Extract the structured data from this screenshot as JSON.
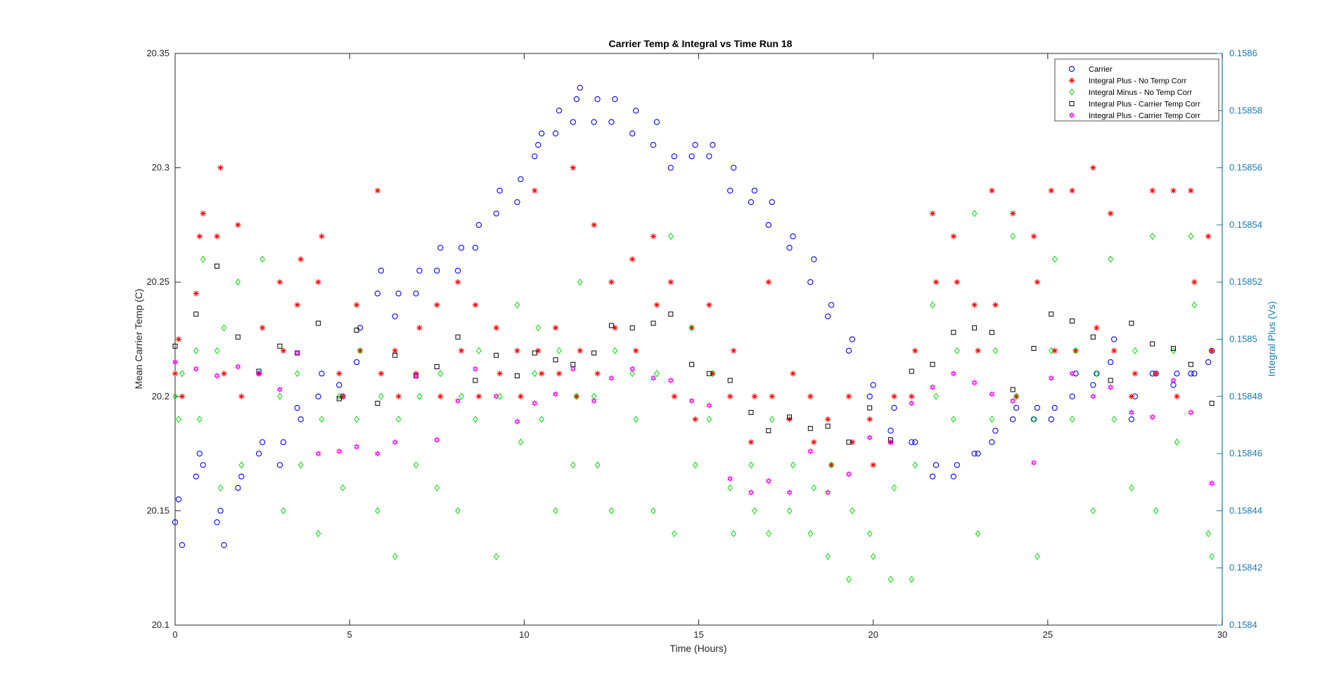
{
  "chart_data": {
    "type": "scatter",
    "title": "Carrier Temp & Integral vs Time Run 18",
    "xlabel": "Time (Hours)",
    "ylabel": "Mean Carrier Temp (C)",
    "ylabel_right": "Integral Plus (Vs)",
    "xlim": [
      0,
      30
    ],
    "ylim": [
      20.1,
      20.35
    ],
    "ylim_right": [
      0.1584,
      0.1586
    ],
    "x_ticks": [
      "0",
      "5",
      "10",
      "15",
      "20",
      "25",
      "30"
    ],
    "y_ticks": [
      "20.1",
      "20.15",
      "20.2",
      "20.25",
      "20.3",
      "20.35"
    ],
    "y_ticks_right": [
      "0.1584",
      "0.15842",
      "0.15844",
      "0.15846",
      "0.15848",
      "0.1585",
      "0.15852",
      "0.15854",
      "0.15856",
      "0.15858",
      "0.1586"
    ],
    "grid": false,
    "legend_position": "top-right",
    "colors": {
      "carrier": "#0000ff",
      "plus_no_corr": "#ff0000",
      "minus_no_corr": "#00dd00",
      "plus_temp_corr": "#000000",
      "plus_temp_corr_2": "#ff00ff",
      "right_axis": "#1a7ab5"
    },
    "series": [
      {
        "name": "Carrier",
        "marker": "circle",
        "axis": "left",
        "x": [
          0,
          0.1,
          0.2,
          0.6,
          0.7,
          0.8,
          1.2,
          1.3,
          1.4,
          1.8,
          1.9,
          2.4,
          2.5,
          3.0,
          3.1,
          3.5,
          3.6,
          4.1,
          4.2,
          4.7,
          4.8,
          5.2,
          5.3,
          5.8,
          5.9,
          6.3,
          6.4,
          6.9,
          7.0,
          7.5,
          7.6,
          8.1,
          8.2,
          8.6,
          8.7,
          9.2,
          9.3,
          9.8,
          9.9,
          10.3,
          10.4,
          10.5,
          10.9,
          11.0,
          11.4,
          11.5,
          11.6,
          12.0,
          12.1,
          12.5,
          12.6,
          13.1,
          13.2,
          13.7,
          13.8,
          14.2,
          14.3,
          14.8,
          14.9,
          15.3,
          15.4,
          15.9,
          16.0,
          16.5,
          16.6,
          17.0,
          17.1,
          17.6,
          17.7,
          18.2,
          18.3,
          18.7,
          18.8,
          19.3,
          19.4,
          19.9,
          20.0,
          20.5,
          20.6,
          21.1,
          21.2,
          21.7,
          21.8,
          22.3,
          22.4,
          22.9,
          23.0,
          23.4,
          23.5,
          24.0,
          24.1,
          24.6,
          24.7,
          25.1,
          25.2,
          25.7,
          25.8,
          26.3,
          26.4,
          26.8,
          26.9,
          27.4,
          27.5,
          28.0,
          28.1,
          28.6,
          28.7,
          29.1,
          29.2,
          29.6,
          29.7
        ],
        "y": [
          20.145,
          20.155,
          20.135,
          20.165,
          20.175,
          20.17,
          20.145,
          20.15,
          20.135,
          20.16,
          20.165,
          20.175,
          20.18,
          20.17,
          20.18,
          20.195,
          20.19,
          20.2,
          20.21,
          20.205,
          20.2,
          20.215,
          20.23,
          20.245,
          20.255,
          20.235,
          20.245,
          20.245,
          20.255,
          20.255,
          20.265,
          20.255,
          20.265,
          20.265,
          20.275,
          20.28,
          20.29,
          20.285,
          20.295,
          20.305,
          20.31,
          20.315,
          20.315,
          20.325,
          20.32,
          20.33,
          20.335,
          20.32,
          20.33,
          20.32,
          20.33,
          20.315,
          20.325,
          20.31,
          20.32,
          20.3,
          20.305,
          20.305,
          20.31,
          20.305,
          20.31,
          20.29,
          20.3,
          20.285,
          20.29,
          20.275,
          20.285,
          20.265,
          20.27,
          20.25,
          20.26,
          20.235,
          20.24,
          20.22,
          20.225,
          20.2,
          20.205,
          20.185,
          20.195,
          20.18,
          20.18,
          20.165,
          20.17,
          20.165,
          20.17,
          20.175,
          20.175,
          20.18,
          20.185,
          20.19,
          20.195,
          20.19,
          20.195,
          20.19,
          20.195,
          20.2,
          20.21,
          20.205,
          20.21,
          20.215,
          20.225,
          20.19,
          20.2,
          20.21,
          20.21,
          20.205,
          20.21,
          20.21,
          20.21,
          20.215,
          20.22
        ]
      },
      {
        "name": "Integral Plus -  No Temp Corr",
        "marker": "star",
        "axis": "left",
        "x": [
          0,
          0.1,
          0.2,
          0.6,
          0.7,
          0.8,
          1.2,
          1.3,
          1.4,
          1.8,
          1.9,
          2.4,
          2.5,
          3.0,
          3.1,
          3.5,
          3.6,
          4.1,
          4.2,
          4.7,
          4.8,
          5.2,
          5.3,
          5.8,
          5.9,
          6.3,
          6.4,
          6.9,
          7.0,
          7.5,
          7.6,
          8.1,
          8.2,
          8.6,
          8.7,
          9.2,
          9.3,
          9.8,
          9.9,
          10.3,
          10.4,
          10.5,
          10.9,
          11.0,
          11.4,
          11.5,
          11.6,
          12.0,
          12.1,
          12.5,
          12.6,
          13.1,
          13.2,
          13.7,
          13.8,
          14.2,
          14.3,
          14.8,
          14.9,
          15.3,
          15.4,
          15.9,
          16.0,
          16.5,
          16.6,
          17.0,
          17.1,
          17.6,
          17.7,
          18.2,
          18.3,
          18.7,
          18.8,
          19.3,
          19.4,
          19.9,
          20.0,
          20.5,
          20.6,
          21.1,
          21.2,
          21.7,
          21.8,
          22.3,
          22.4,
          22.9,
          23.0,
          23.4,
          23.5,
          24.0,
          24.1,
          24.6,
          24.7,
          25.1,
          25.2,
          25.7,
          25.8,
          26.3,
          26.4,
          26.8,
          26.9,
          27.4,
          27.5,
          28.0,
          28.1,
          28.6,
          28.7,
          29.1,
          29.2,
          29.6,
          29.7
        ],
        "y": [
          20.21,
          20.225,
          20.2,
          20.245,
          20.27,
          20.28,
          20.27,
          20.3,
          20.21,
          20.275,
          20.2,
          20.21,
          20.23,
          20.25,
          20.22,
          20.24,
          20.26,
          20.25,
          20.27,
          20.21,
          20.2,
          20.24,
          20.22,
          20.29,
          20.21,
          20.22,
          20.2,
          20.21,
          20.23,
          20.24,
          20.2,
          20.25,
          20.22,
          20.24,
          20.2,
          20.23,
          20.21,
          20.22,
          20.2,
          20.29,
          20.22,
          20.21,
          20.23,
          20.21,
          20.3,
          20.2,
          20.22,
          20.275,
          20.21,
          20.25,
          20.23,
          20.26,
          20.22,
          20.27,
          20.24,
          20.25,
          20.2,
          20.23,
          20.19,
          20.24,
          20.21,
          20.2,
          20.22,
          20.18,
          20.2,
          20.25,
          20.2,
          20.19,
          20.21,
          20.2,
          20.18,
          20.19,
          20.17,
          20.2,
          20.18,
          20.19,
          20.17,
          20.18,
          20.2,
          20.2,
          20.22,
          20.28,
          20.25,
          20.27,
          20.25,
          20.24,
          20.22,
          20.29,
          20.24,
          20.28,
          20.2,
          20.27,
          20.25,
          20.29,
          20.22,
          20.29,
          20.22,
          20.3,
          20.23,
          20.28,
          20.22,
          20.2,
          20.21,
          20.29,
          20.21,
          20.29,
          20.2,
          20.29,
          20.25,
          20.27,
          20.22
        ]
      },
      {
        "name": "Integral Minus -  No Temp Corr",
        "marker": "diamond",
        "axis": "left",
        "x": [
          0,
          0.1,
          0.2,
          0.6,
          0.7,
          0.8,
          1.2,
          1.3,
          1.4,
          1.8,
          1.9,
          2.4,
          2.5,
          3.0,
          3.1,
          3.5,
          3.6,
          4.1,
          4.2,
          4.7,
          4.8,
          5.2,
          5.3,
          5.8,
          5.9,
          6.3,
          6.4,
          6.9,
          7.0,
          7.5,
          7.6,
          8.1,
          8.2,
          8.6,
          8.7,
          9.2,
          9.3,
          9.8,
          9.9,
          10.3,
          10.4,
          10.5,
          10.9,
          11.0,
          11.4,
          11.5,
          11.6,
          12.0,
          12.1,
          12.5,
          12.6,
          13.1,
          13.2,
          13.7,
          13.8,
          14.2,
          14.3,
          14.8,
          14.9,
          15.3,
          15.4,
          15.9,
          16.0,
          16.5,
          16.6,
          17.0,
          17.1,
          17.6,
          17.7,
          18.2,
          18.3,
          18.7,
          18.8,
          19.3,
          19.4,
          19.9,
          20.0,
          20.5,
          20.6,
          21.1,
          21.2,
          21.7,
          21.8,
          22.3,
          22.4,
          22.9,
          23.0,
          23.4,
          23.5,
          24.0,
          24.1,
          24.6,
          24.7,
          25.1,
          25.2,
          25.7,
          25.8,
          26.3,
          26.4,
          26.8,
          26.9,
          27.4,
          27.5,
          28.0,
          28.1,
          28.6,
          28.7,
          29.1,
          29.2,
          29.6,
          29.7
        ],
        "y": [
          20.2,
          20.19,
          20.21,
          20.22,
          20.19,
          20.26,
          20.22,
          20.16,
          20.23,
          20.25,
          20.17,
          20.21,
          20.26,
          20.2,
          20.15,
          20.21,
          20.17,
          20.14,
          20.19,
          20.2,
          20.16,
          20.19,
          20.22,
          20.15,
          20.2,
          20.13,
          20.19,
          20.17,
          20.2,
          20.16,
          20.21,
          20.15,
          20.2,
          20.19,
          20.22,
          20.13,
          20.2,
          20.24,
          20.18,
          20.21,
          20.23,
          20.19,
          20.15,
          20.22,
          20.17,
          20.2,
          20.25,
          20.2,
          20.17,
          20.15,
          20.22,
          20.21,
          20.19,
          20.15,
          20.21,
          20.27,
          20.14,
          20.23,
          20.17,
          20.19,
          20.21,
          20.16,
          20.14,
          20.17,
          20.15,
          20.14,
          20.19,
          20.15,
          20.17,
          20.14,
          20.16,
          20.13,
          20.17,
          20.12,
          20.15,
          20.14,
          20.13,
          20.12,
          20.16,
          20.12,
          20.17,
          20.24,
          20.2,
          20.19,
          20.22,
          20.28,
          20.14,
          20.19,
          20.22,
          20.27,
          20.2,
          20.19,
          20.13,
          20.22,
          20.26,
          20.19,
          20.22,
          20.15,
          20.21,
          20.26,
          20.19,
          20.16,
          20.22,
          20.27,
          20.15,
          20.22,
          20.18,
          20.27,
          20.24,
          20.14,
          20.13
        ]
      },
      {
        "name": "Integral Plus -  Carrier Temp Corr",
        "marker": "square",
        "axis": "left",
        "x": [
          0,
          0.6,
          1.2,
          1.8,
          2.4,
          3.0,
          3.5,
          4.1,
          4.7,
          5.2,
          5.8,
          6.3,
          6.9,
          7.5,
          8.1,
          8.6,
          9.2,
          9.8,
          10.3,
          10.9,
          11.4,
          12.0,
          12.5,
          13.1,
          13.7,
          14.2,
          14.8,
          15.3,
          15.9,
          16.5,
          17.0,
          17.6,
          18.2,
          18.7,
          19.3,
          19.9,
          20.5,
          21.1,
          21.7,
          22.3,
          22.9,
          23.4,
          24.0,
          24.6,
          25.1,
          25.7,
          26.3,
          26.8,
          27.4,
          28.0,
          28.6,
          29.1,
          29.7
        ],
        "y": [
          20.222,
          20.236,
          20.257,
          20.226,
          20.211,
          20.222,
          20.219,
          20.232,
          20.199,
          20.229,
          20.197,
          20.218,
          20.209,
          20.213,
          20.226,
          20.207,
          20.218,
          20.209,
          20.219,
          20.216,
          20.214,
          20.219,
          20.231,
          20.23,
          20.232,
          20.236,
          20.214,
          20.21,
          20.207,
          20.193,
          20.185,
          20.191,
          20.186,
          20.187,
          20.18,
          20.195,
          20.181,
          20.211,
          20.214,
          20.228,
          20.23,
          20.228,
          20.203,
          20.221,
          20.236,
          20.233,
          20.226,
          20.207,
          20.232,
          20.223,
          20.221,
          20.214,
          20.197
        ]
      },
      {
        "name": "Integral Plus -  Carrier Temp Corr",
        "marker": "hexagram",
        "axis": "left",
        "x": [
          0,
          0.6,
          1.2,
          1.8,
          2.4,
          3.0,
          3.5,
          4.1,
          4.7,
          5.2,
          5.8,
          6.3,
          6.9,
          7.5,
          8.1,
          8.6,
          9.2,
          9.8,
          10.3,
          10.9,
          11.4,
          12.0,
          12.5,
          13.1,
          13.7,
          14.2,
          14.8,
          15.3,
          15.9,
          16.5,
          17.0,
          17.6,
          18.2,
          18.7,
          19.3,
          19.9,
          20.5,
          21.1,
          21.7,
          22.3,
          22.9,
          23.4,
          24.0,
          24.6,
          25.1,
          25.7,
          26.3,
          26.8,
          27.4,
          28.0,
          28.6,
          29.1,
          29.7
        ],
        "y": [
          20.215,
          20.212,
          20.209,
          20.213,
          20.21,
          20.203,
          20.219,
          20.175,
          20.176,
          20.178,
          20.175,
          20.18,
          20.209,
          20.181,
          20.198,
          20.212,
          20.2,
          20.189,
          20.197,
          20.201,
          20.212,
          20.198,
          20.208,
          20.212,
          20.208,
          20.207,
          20.198,
          20.196,
          20.164,
          20.158,
          20.163,
          20.158,
          20.176,
          20.158,
          20.166,
          20.182,
          20.18,
          20.197,
          20.204,
          20.21,
          20.206,
          20.201,
          20.198,
          20.171,
          20.208,
          20.21,
          20.2,
          20.204,
          20.193,
          20.191,
          20.207,
          20.193,
          20.162
        ]
      }
    ]
  }
}
